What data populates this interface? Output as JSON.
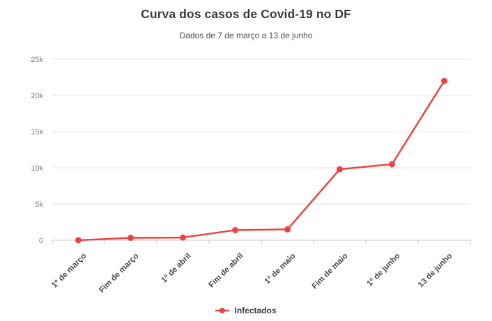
{
  "header": {
    "title": "Curva dos casos de Covid-19 no DF",
    "subtitle": "Dados de 7 de março a 13 de junho"
  },
  "legend": {
    "label": "Infectados"
  },
  "colors": {
    "series": "#e8463f",
    "grid": "#e4e4e4",
    "axis": "#c9c9c9",
    "ytick_text": "#7f7f7f",
    "xtick_text": "#484848",
    "title_text": "#3b3b3b",
    "subtitle_text": "#4e4e4e"
  },
  "chart_data": {
    "type": "line",
    "title": "Curva dos casos de Covid-19 no DF",
    "subtitle": "Dados de 7 de março a 13 de junho",
    "categories": [
      "1º de março",
      "Fim de março",
      "1º de abril",
      "Fim de abril",
      "1º de maio",
      "Fim de maio",
      "1º de junho",
      "13 de junho"
    ],
    "series": [
      {
        "name": "Infectados",
        "color": "#e8463f",
        "values": [
          1,
          330,
          370,
          1400,
          1500,
          9800,
          10500,
          22000
        ]
      }
    ],
    "ylim": [
      0,
      25000
    ],
    "yticks": [
      0,
      5000,
      10000,
      15000,
      20000,
      25000
    ],
    "ytick_labels": [
      "0",
      "5k",
      "10k",
      "15k",
      "20k",
      "25k"
    ],
    "grid": "horizontal",
    "legend_position": "bottom",
    "x_labels_rotation_deg": -45
  }
}
